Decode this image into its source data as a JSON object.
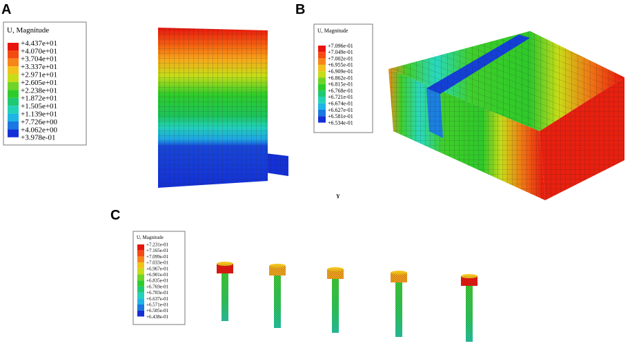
{
  "panels": [
    {
      "label": "A",
      "legend": {
        "title": "U, Magnitude",
        "values": [
          "+4.437e+01",
          "+4.070e+01",
          "+3.704e+01",
          "+3.337e+01",
          "+2.971e+01",
          "+2.605e+01",
          "+2.238e+01",
          "+1.872e+01",
          "+1.505e+01",
          "+1.139e+01",
          "+7.726e+00",
          "+4.062e+00",
          "+3.978e-01"
        ]
      }
    },
    {
      "label": "B",
      "legend": {
        "title": "U, Magnitude",
        "values": [
          "+7.096e-01",
          "+7.049e-01",
          "+7.002e-01",
          "+6.955e-01",
          "+6.909e-01",
          "+6.862e-01",
          "+6.815e-01",
          "+6.768e-01",
          "+6.721e-01",
          "+6.674e-01",
          "+6.627e-01",
          "+6.581e-01",
          "+6.534e-01"
        ]
      },
      "axis_label": "Y"
    },
    {
      "label": "C",
      "legend": {
        "title": "U, Magnitude",
        "values": [
          "+7.231e-01",
          "+7.165e-01",
          "+7.099e-01",
          "+7.033e-01",
          "+6.967e-01",
          "+6.901e-01",
          "+6.835e-01",
          "+6.769e-01",
          "+6.703e-01",
          "+6.637e-01",
          "+6.571e-01",
          "+6.505e-01",
          "+6.438e-01"
        ]
      }
    }
  ]
}
